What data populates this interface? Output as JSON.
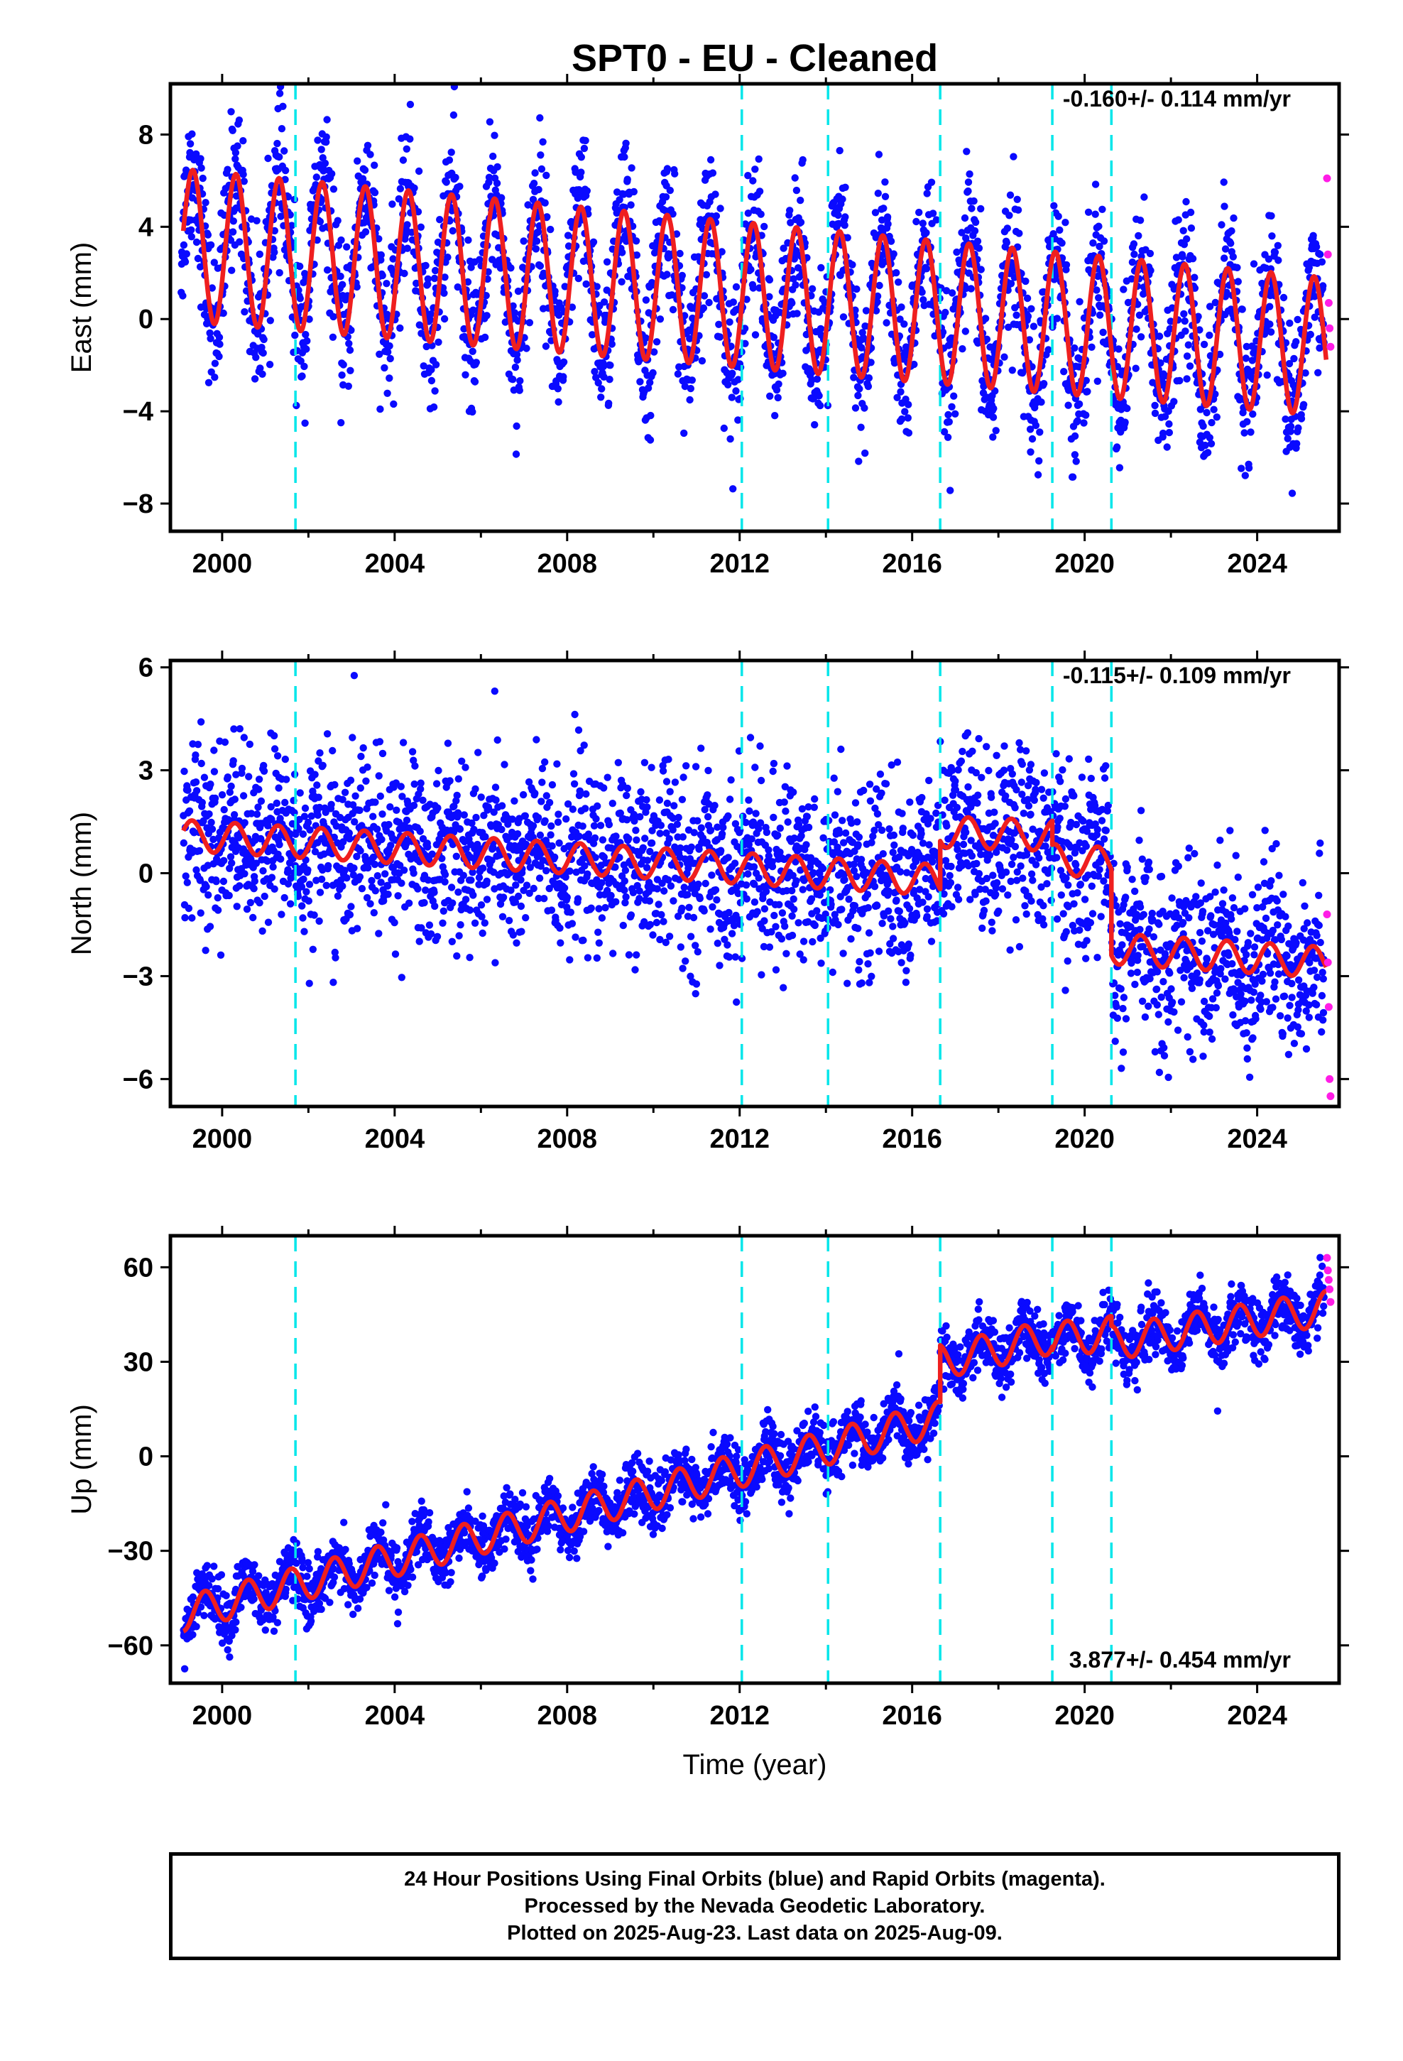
{
  "title": "SPT0  - EU - Cleaned",
  "colors": {
    "final_orbits": "#0a0aff",
    "rapid_orbits": "#ff1ce6",
    "model_fit": "#ef1f1f",
    "offset_lines": "#00e6ea"
  },
  "chart_data": [
    {
      "type": "scatter",
      "component": "east",
      "ylabel": "East (mm)",
      "xlim": [
        1998.8,
        2025.9
      ],
      "ylim": [
        -9.2,
        10.2
      ],
      "xticks": [
        2000,
        2004,
        2008,
        2012,
        2016,
        2020,
        2024
      ],
      "yticks": [
        -8,
        -4,
        0,
        4,
        8
      ],
      "rate_label": "-0.160+/- 0.114 mm/yr",
      "offsets_years": [
        2001.7,
        2012.05,
        2014.05,
        2016.65,
        2019.25,
        2020.62
      ],
      "model": {
        "start": 1999.1,
        "end": 2025.6,
        "mean_start": 3.2,
        "mean_end": -1.2,
        "amp_start": 3.3,
        "amp_end": 3.0,
        "phase_peak": 0.32
      },
      "scatter_sigma": 1.6,
      "series": [
        {
          "name": "Final Orbits (blue)",
          "x_range": [
            1999.05,
            2025.55
          ]
        },
        {
          "name": "Rapid Orbits (magenta)",
          "x": [
            2025.62,
            2025.64,
            2025.66,
            2025.68,
            2025.7
          ],
          "y": [
            6.1,
            2.8,
            0.7,
            -0.4,
            -1.2
          ]
        }
      ]
    },
    {
      "type": "scatter",
      "component": "north",
      "ylabel": "North (mm)",
      "xlim": [
        1998.8,
        2025.9
      ],
      "ylim": [
        -6.8,
        6.2
      ],
      "xticks": [
        2000,
        2004,
        2008,
        2012,
        2016,
        2020,
        2024
      ],
      "yticks": [
        -6,
        -3,
        0,
        3,
        6
      ],
      "rate_label": "-0.115+/- 0.109 mm/yr",
      "offsets_years": [
        2001.7,
        2012.05,
        2014.05,
        2016.65,
        2019.25,
        2020.62
      ],
      "model": {
        "segments": [
          {
            "start": 1999.1,
            "end": 2016.65,
            "v0": 1.1,
            "v1": -0.2
          },
          {
            "start": 2016.65,
            "end": 2019.25,
            "v0": 1.2,
            "v1": 1.1
          },
          {
            "start": 2019.25,
            "end": 2020.62,
            "v0": 0.4,
            "v1": 0.3
          },
          {
            "start": 2020.62,
            "end": 2025.6,
            "v0": -2.2,
            "v1": -2.6
          }
        ],
        "amp": 0.45,
        "phase_peak": 0.3
      },
      "scatter_sigma": 1.3,
      "series": [
        {
          "name": "Final Orbits (blue)",
          "x_range": [
            1999.05,
            2025.55
          ]
        },
        {
          "name": "Rapid Orbits (magenta)",
          "x": [
            2025.62,
            2025.64,
            2025.66,
            2025.68,
            2025.7
          ],
          "y": [
            -1.2,
            -2.6,
            -3.9,
            -6.0,
            -6.5
          ]
        }
      ]
    },
    {
      "type": "scatter",
      "component": "up",
      "ylabel": "Up (mm)",
      "xlabel": "Time (year)",
      "xlim": [
        1998.8,
        2025.9
      ],
      "ylim": [
        -72,
        70
      ],
      "xticks": [
        2000,
        2004,
        2008,
        2012,
        2016,
        2020,
        2024
      ],
      "yticks": [
        -60,
        -30,
        0,
        30,
        60
      ],
      "rate_label": "3.877+/- 0.454 mm/yr",
      "offsets_years": [
        2001.7,
        2012.05,
        2014.05,
        2016.65,
        2019.25,
        2020.62
      ],
      "model": {
        "segments": [
          {
            "start": 1999.1,
            "end": 2016.65,
            "v0": -50,
            "v1": 12
          },
          {
            "start": 2016.65,
            "end": 2019.25,
            "v0": 30,
            "v1": 38
          },
          {
            "start": 2019.25,
            "end": 2020.62,
            "v0": 37,
            "v1": 39
          },
          {
            "start": 2020.62,
            "end": 2025.6,
            "v0": 36,
            "v1": 47
          }
        ],
        "amp": 5.5,
        "phase_peak": 0.6
      },
      "scatter_sigma": 4.5,
      "series": [
        {
          "name": "Final Orbits (blue)",
          "x_range": [
            1999.05,
            2025.55
          ]
        },
        {
          "name": "Rapid Orbits (magenta)",
          "x": [
            2025.62,
            2025.64,
            2025.66,
            2025.68,
            2025.7
          ],
          "y": [
            63,
            59,
            56,
            53,
            49
          ]
        }
      ]
    }
  ],
  "footer": {
    "line1": "24 Hour Positions Using Final Orbits (blue) and Rapid Orbits (magenta).",
    "line2": "Processed by the Nevada Geodetic Laboratory.",
    "line3": "Plotted on 2025-Aug-23. Last data on 2025-Aug-09."
  }
}
